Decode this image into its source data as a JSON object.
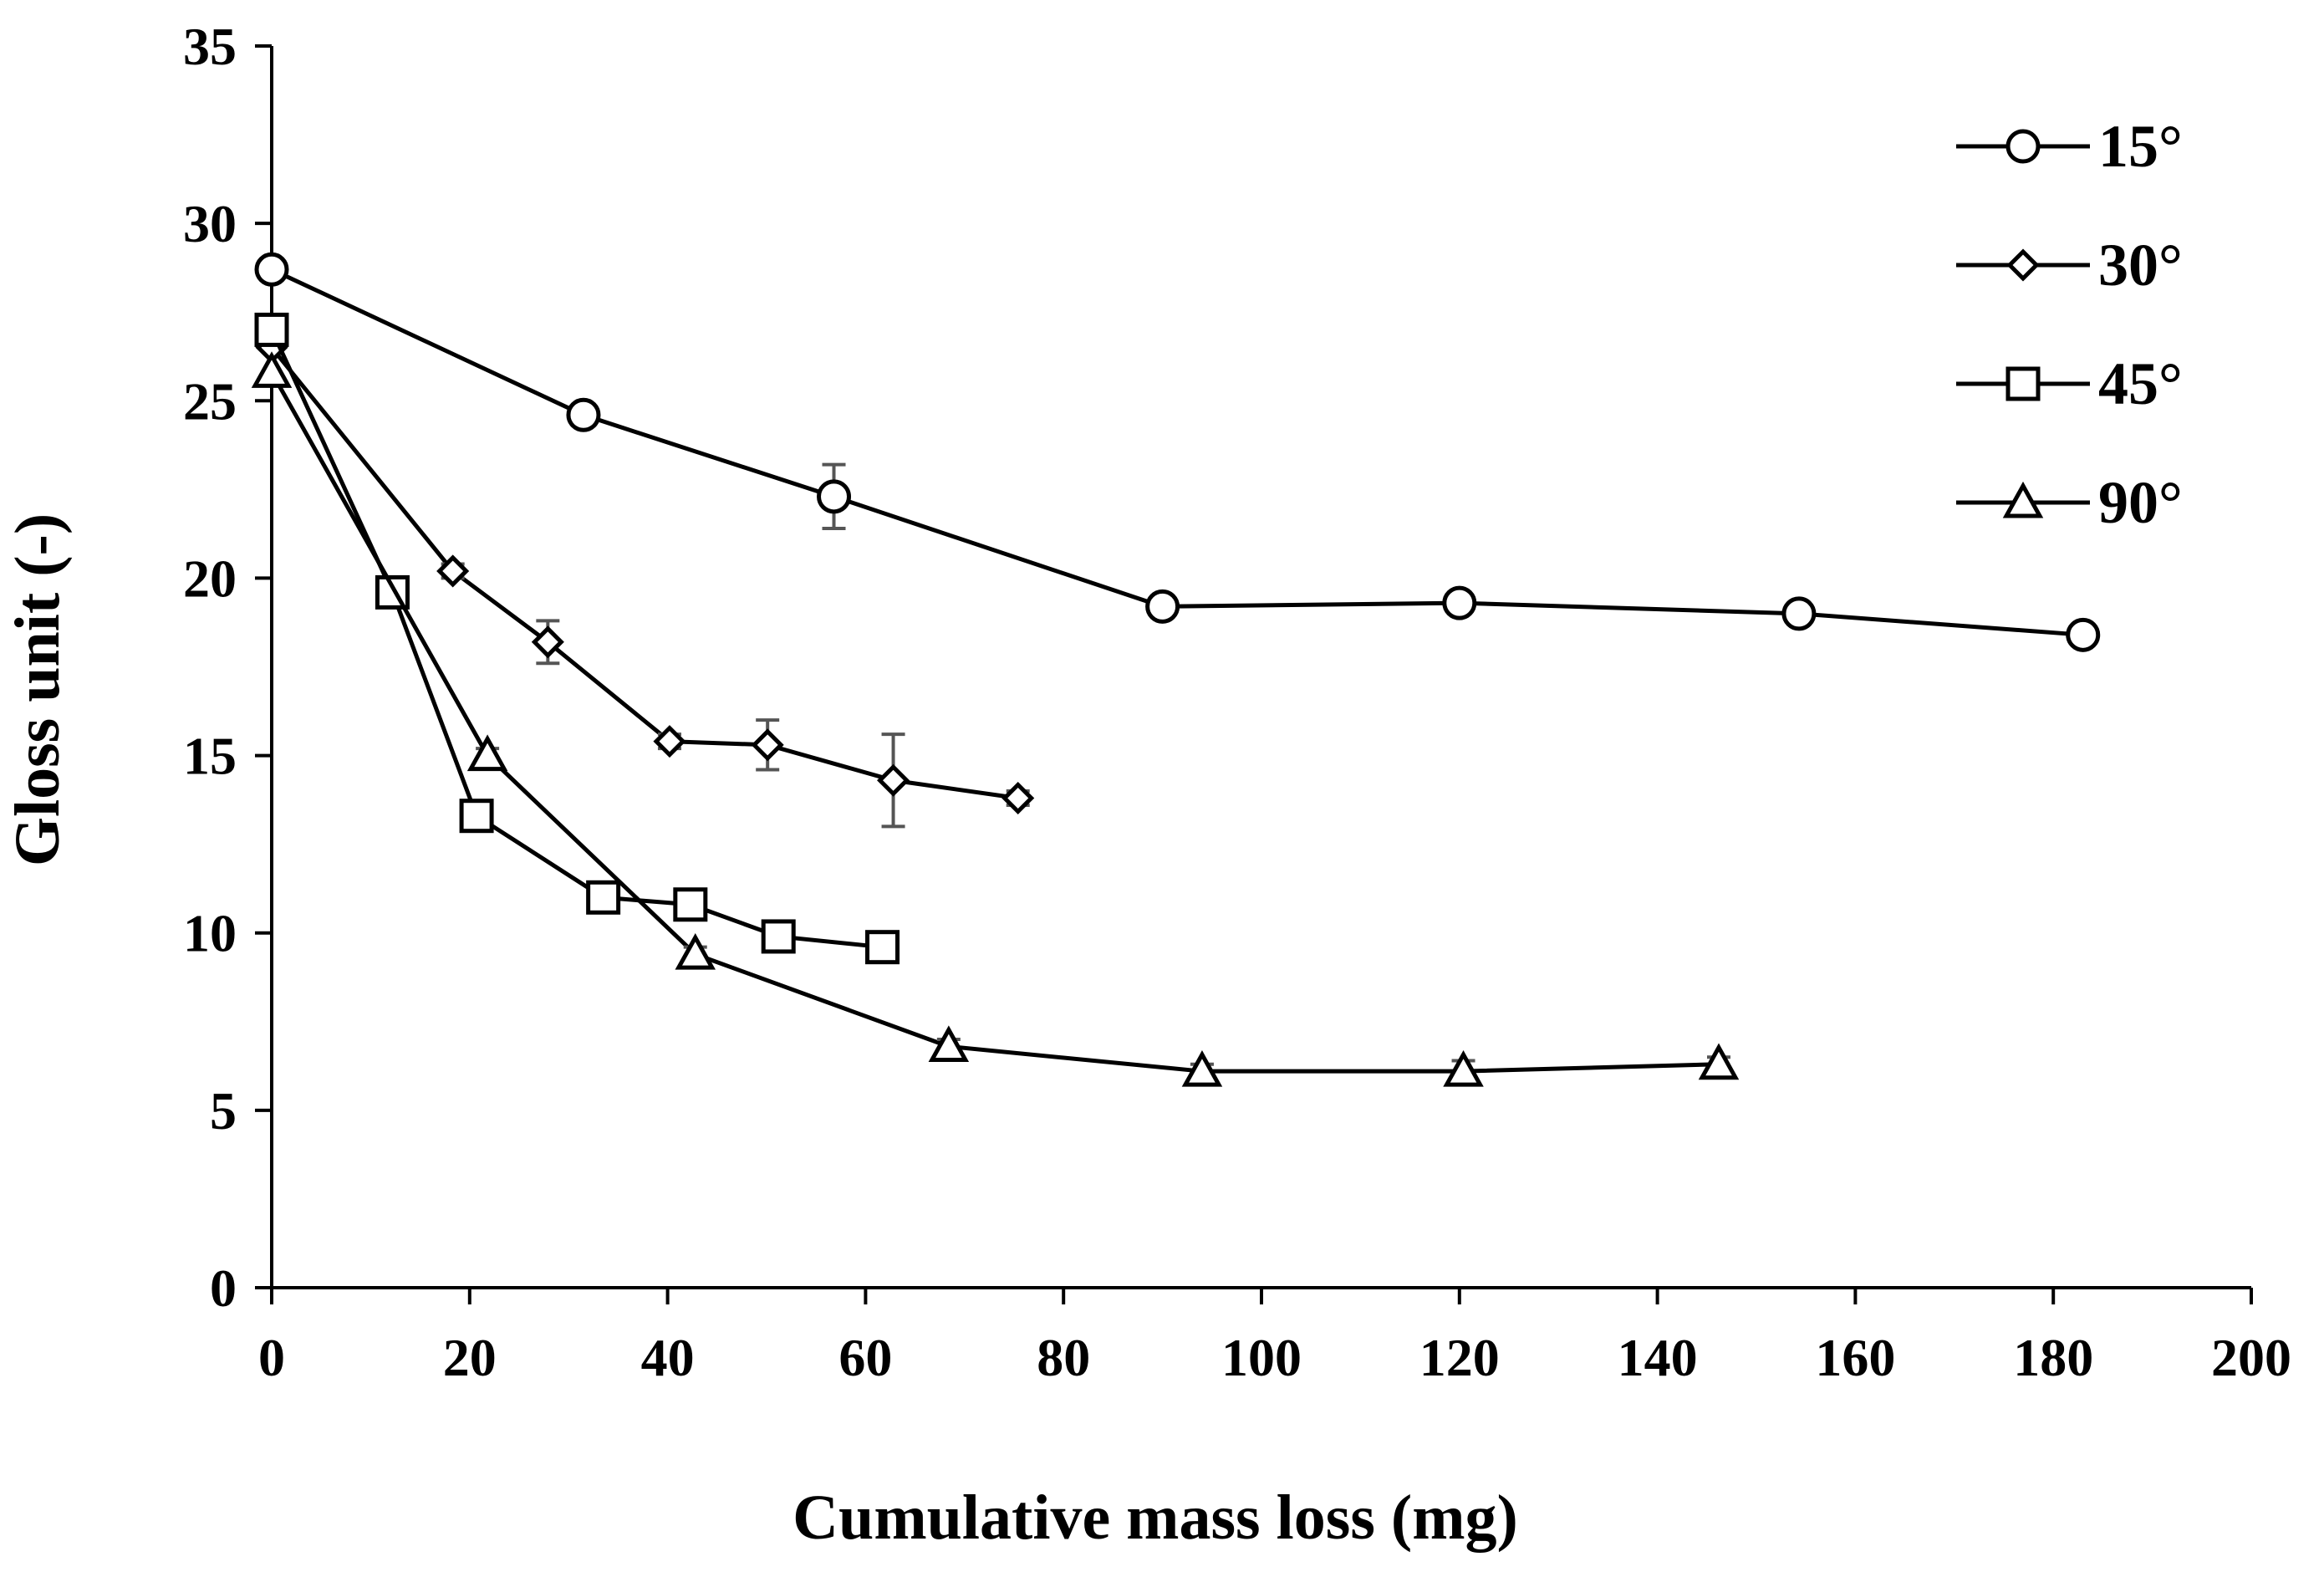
{
  "chart_data": {
    "type": "line",
    "title": "",
    "xlabel": "Cumulative mass loss (mg)",
    "ylabel": "Gloss unit (-)",
    "xlim": [
      0,
      200
    ],
    "ylim": [
      0,
      35
    ],
    "xticks": [
      0,
      20,
      40,
      60,
      80,
      100,
      120,
      140,
      160,
      180,
      200
    ],
    "yticks": [
      0,
      5,
      10,
      15,
      20,
      25,
      30,
      35
    ],
    "xtick_labels": [
      "0",
      "20",
      "40",
      "60",
      "80",
      "100",
      "120",
      "140",
      "160",
      "180",
      "200"
    ],
    "ytick_labels": [
      "0",
      "5",
      "10",
      "15",
      "20",
      "25",
      "30",
      "35"
    ],
    "grid": false,
    "legend_position": "top-right",
    "series": [
      {
        "name": "15°",
        "marker": "circle",
        "x": [
          0,
          31.5,
          56.8,
          90,
          120,
          154.3,
          183
        ],
        "y": [
          28.7,
          24.6,
          22.3,
          19.2,
          19.3,
          19.0,
          18.4
        ],
        "error": [
          0,
          0.2,
          0.9,
          0.3,
          0.3,
          0.2,
          0.2
        ]
      },
      {
        "name": "30°",
        "marker": "diamond",
        "x": [
          0,
          18.3,
          27.9,
          40.2,
          50.1,
          62.8,
          75.4
        ],
        "y": [
          26.5,
          20.2,
          18.2,
          15.4,
          15.3,
          14.3,
          13.8
        ],
        "error": [
          0,
          0.2,
          0.6,
          0.2,
          0.7,
          1.3,
          0.2
        ]
      },
      {
        "name": "45°",
        "marker": "square",
        "x": [
          0,
          12.2,
          20.7,
          33.5,
          42.3,
          51.2,
          61.7
        ],
        "y": [
          27.0,
          19.6,
          13.3,
          11.0,
          10.8,
          9.9,
          9.6
        ],
        "error": [
          0,
          0.2,
          0.2,
          0.2,
          0.3,
          0.2,
          0.2
        ]
      },
      {
        "name": "90°",
        "marker": "triangle",
        "x": [
          0,
          21.8,
          42.8,
          68.4,
          94,
          120.4,
          146.2
        ],
        "y": [
          25.8,
          15.0,
          9.4,
          6.8,
          6.1,
          6.1,
          6.3
        ],
        "error": [
          0,
          0.2,
          0.2,
          0.2,
          0.2,
          0.3,
          0.2
        ]
      }
    ]
  }
}
